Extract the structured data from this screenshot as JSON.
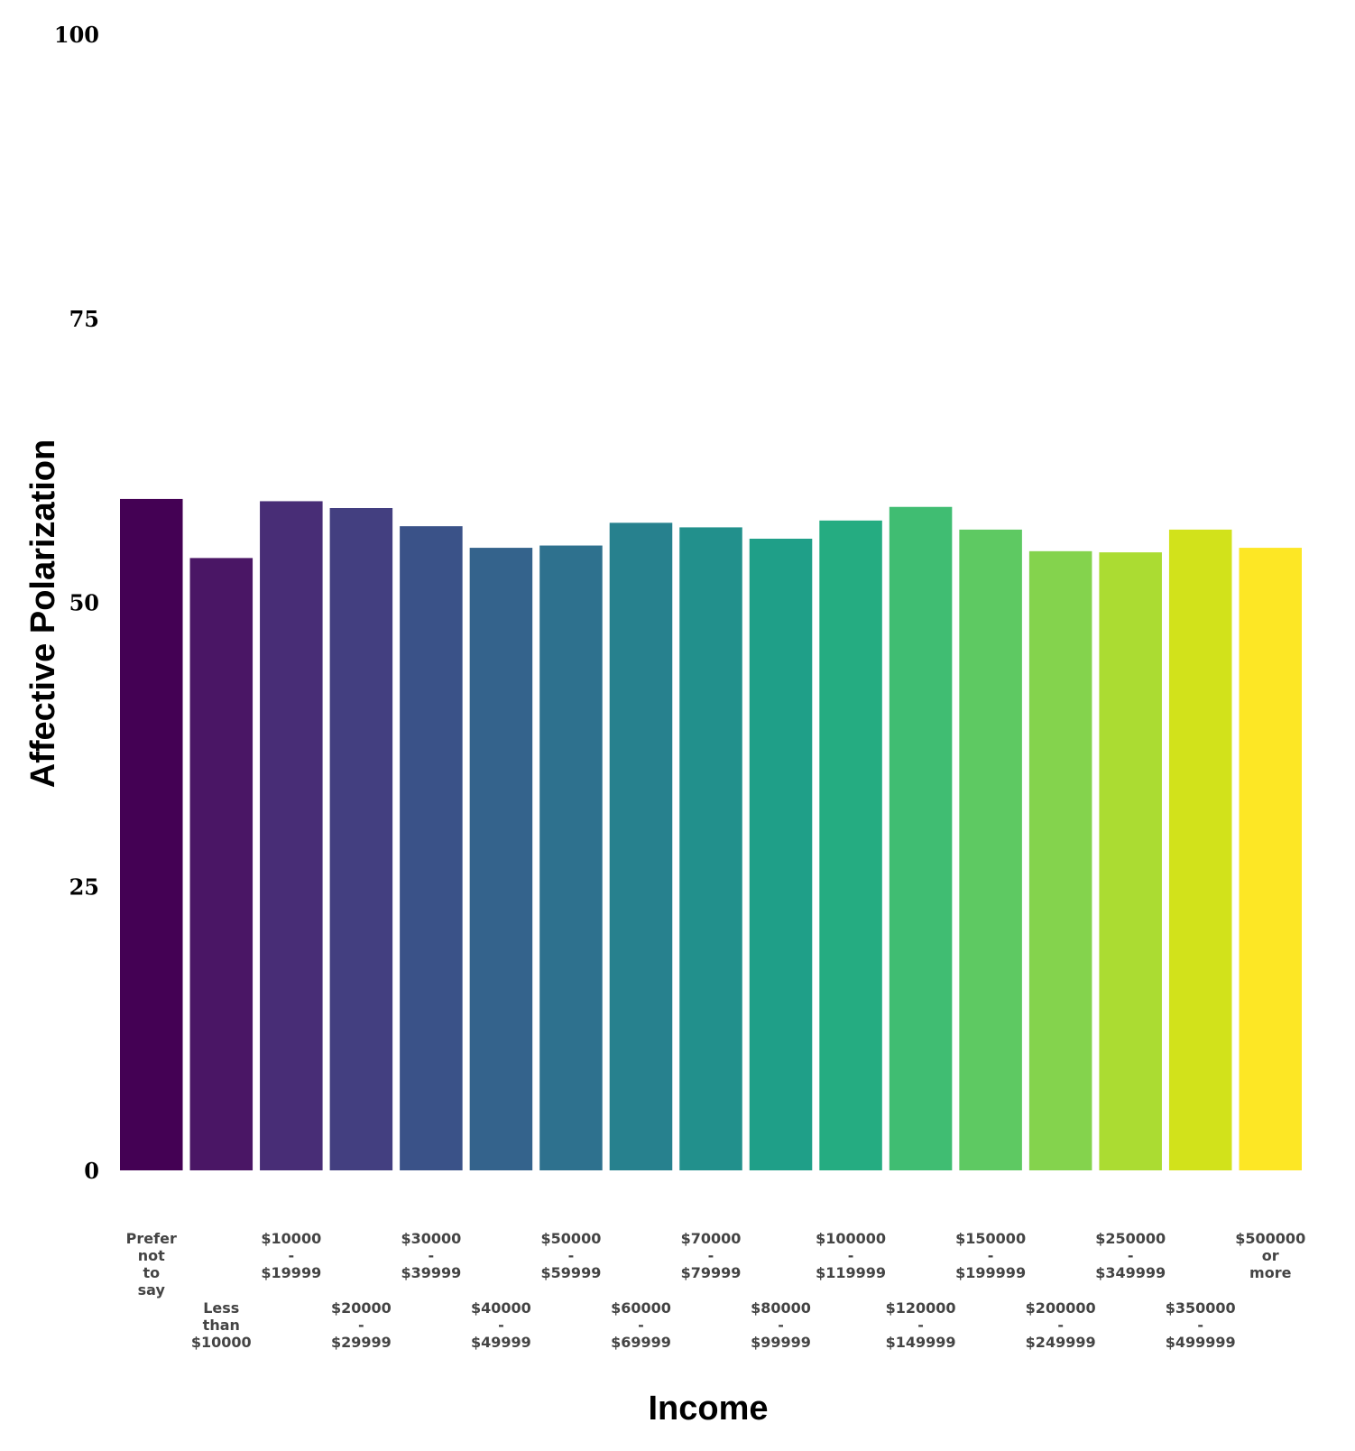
{
  "chart_data": {
    "type": "bar",
    "xlabel": "Income",
    "ylabel": "Affective Polarization",
    "ylim": [
      0,
      100
    ],
    "yticks": [
      0,
      25,
      50,
      75,
      100
    ],
    "grid": false,
    "legend": "none",
    "categories": [
      "Prefer not to say",
      "Less than $10000",
      "$10000 - $19999",
      "$20000 - $29999",
      "$30000 - $39999",
      "$40000 - $49999",
      "$50000 - $59999",
      "$60000 - $69999",
      "$70000 - $79999",
      "$80000 - $99999",
      "$100000 - $119999",
      "$120000 - $149999",
      "$150000 - $199999",
      "$200000 - $249999",
      "$250000 - $349999",
      "$350000 - $499999",
      "$500000 or more"
    ],
    "values": [
      59.1,
      53.9,
      58.9,
      58.3,
      56.7,
      54.8,
      55.0,
      57.0,
      56.6,
      55.6,
      57.2,
      58.4,
      56.4,
      54.5,
      54.4,
      56.4,
      54.8
    ],
    "colors": [
      "#440154",
      "#4a1665",
      "#482d76",
      "#433f80",
      "#3a5288",
      "#34638c",
      "#2e718e",
      "#27818e",
      "#22908c",
      "#1f9f88",
      "#25ac81",
      "#40bd72",
      "#5ec962",
      "#84d34d",
      "#abdc32",
      "#d2e21b",
      "#fde725"
    ]
  }
}
